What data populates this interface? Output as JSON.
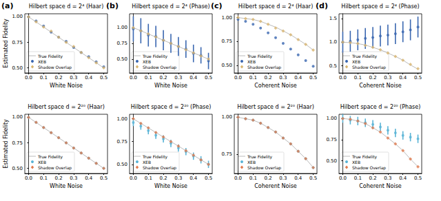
{
  "chart_data": [
    {
      "type": "scatter",
      "annotation": "(a)",
      "title": "Hilbert space d = 2⁴ (Haar)",
      "xlabel": "White Noise",
      "ylabel": "Estimated Fidelity",
      "x": [
        0,
        0.05,
        0.1,
        0.15,
        0.2,
        0.25,
        0.3,
        0.35,
        0.4,
        0.45,
        0.5
      ],
      "xlim": [
        -0.025,
        0.525
      ],
      "xticks": [
        {
          "value": 0,
          "label": "0.0"
        },
        0.1,
        0.2,
        0.3,
        0.4,
        0.5
      ],
      "ylim": [
        0.45,
        1.03
      ],
      "yticks": [
        {
          "value": 0.5,
          "label": "0.50"
        },
        0.75,
        {
          "value": 1,
          "label": "1.00"
        }
      ],
      "grid": false,
      "legend": "lower left",
      "series": [
        {
          "name": "True Fidelity",
          "type": "line",
          "line_style": "solid",
          "color": "#bbbbbb",
          "values": [
            1.0,
            0.95,
            0.9,
            0.85,
            0.8,
            0.75,
            0.7,
            0.65,
            0.6,
            0.55,
            0.5
          ]
        },
        {
          "name": "XEB",
          "type": "scatter",
          "marker": "circle",
          "color": "#3a67b0",
          "values": [
            1.0,
            0.96,
            0.91,
            0.85,
            0.8,
            0.76,
            0.7,
            0.65,
            0.61,
            0.56,
            0.51
          ]
        },
        {
          "name": "Shadow Overlap",
          "type": "scatter",
          "marker": "diamond",
          "color": "#d8b46e",
          "values": [
            1.0,
            0.95,
            0.9,
            0.86,
            0.8,
            0.75,
            0.71,
            0.65,
            0.6,
            0.55,
            0.5
          ]
        }
      ]
    },
    {
      "type": "scatter",
      "annotation": "(b)",
      "title": "Hilbert space d = 2⁴ (Phase)",
      "xlabel": "White Noise",
      "x": [
        0,
        0.05,
        0.1,
        0.15,
        0.2,
        0.25,
        0.3,
        0.35,
        0.4,
        0.45,
        0.5
      ],
      "xlim": [
        -0.025,
        0.525
      ],
      "xticks": [
        {
          "value": 0,
          "label": "0.0"
        },
        0.1,
        0.2,
        0.3,
        0.4,
        0.5
      ],
      "ylim": [
        0.28,
        1.22
      ],
      "yticks": [
        {
          "value": 0.5,
          "label": "0.50"
        },
        0.75,
        {
          "value": 1,
          "label": "1.00"
        }
      ],
      "grid": false,
      "legend": "lower left",
      "series": [
        {
          "name": "True Fidelity",
          "type": "line",
          "line_style": "solid",
          "color": "#bbbbbb",
          "values": [
            1.0,
            0.95,
            0.9,
            0.85,
            0.8,
            0.75,
            0.7,
            0.65,
            0.6,
            0.55,
            0.5
          ]
        },
        {
          "name": "XEB",
          "type": "scatter",
          "marker": "circle",
          "color": "#3a67b0",
          "values": [
            0.98,
            0.95,
            0.88,
            0.86,
            0.8,
            0.75,
            0.7,
            0.66,
            0.59,
            0.56,
            0.47
          ],
          "errors": [
            0.2,
            0.2,
            0.18,
            0.17,
            0.16,
            0.15,
            0.15,
            0.14,
            0.14,
            0.13,
            0.13
          ]
        },
        {
          "name": "Shadow Overlap",
          "type": "scatter",
          "marker": "diamond",
          "color": "#d8b46e",
          "values": [
            1.0,
            0.95,
            0.9,
            0.85,
            0.8,
            0.75,
            0.7,
            0.65,
            0.6,
            0.55,
            0.5
          ]
        }
      ]
    },
    {
      "type": "scatter",
      "annotation": "(c)",
      "title": "Hilbert space d = 2⁴ (Haar)",
      "xlabel": "Coherent Noise",
      "x": [
        0,
        0.05,
        0.1,
        0.15,
        0.2,
        0.25,
        0.3,
        0.35,
        0.4,
        0.45,
        0.5
      ],
      "xlim": [
        -0.025,
        0.525
      ],
      "xticks": [
        {
          "value": 0,
          "label": "0.0"
        },
        0.1,
        0.2,
        0.3,
        0.4,
        0.5
      ],
      "ylim": [
        0.42,
        1.04
      ],
      "yticks": [
        {
          "value": 0.5,
          "label": "0.50"
        },
        0.75,
        {
          "value": 1,
          "label": "1.00"
        }
      ],
      "grid": false,
      "legend": "lower left",
      "series": [
        {
          "name": "True Fidelity",
          "type": "line",
          "line_style": "solid",
          "color": "#bbbbbb",
          "values": [
            1.0,
            0.99,
            0.98,
            0.96,
            0.93,
            0.9,
            0.86,
            0.82,
            0.77,
            0.72,
            0.66
          ]
        },
        {
          "name": "XEB",
          "type": "scatter",
          "marker": "circle",
          "color": "#3a67b0",
          "values": [
            0.98,
            0.96,
            0.93,
            0.89,
            0.84,
            0.79,
            0.73,
            0.67,
            0.61,
            0.55,
            0.49
          ]
        },
        {
          "name": "Shadow Overlap",
          "type": "scatter",
          "marker": "diamond",
          "color": "#d8b46e",
          "values": [
            1.0,
            0.99,
            0.98,
            0.96,
            0.93,
            0.89,
            0.86,
            0.82,
            0.77,
            0.72,
            0.66
          ]
        }
      ]
    },
    {
      "type": "scatter",
      "annotation": "(d)",
      "title": "Hilbert space d = 2⁴ (Phase)",
      "xlabel": "Coherent Noise",
      "x": [
        0,
        0.05,
        0.1,
        0.15,
        0.2,
        0.25,
        0.3,
        0.35,
        0.4,
        0.45,
        0.5
      ],
      "xlim": [
        -0.025,
        0.525
      ],
      "xticks": [
        {
          "value": 0,
          "label": "0.0"
        },
        0.1,
        0.2,
        0.3,
        0.4,
        0.5
      ],
      "ylim": [
        0.35,
        1.6
      ],
      "yticks": [
        0.5,
        {
          "value": 1,
          "label": "1.0"
        },
        1.5
      ],
      "grid": false,
      "legend": "lower left",
      "series": [
        {
          "name": "True Fidelity",
          "type": "line",
          "line_style": "solid",
          "color": "#bbbbbb",
          "values": [
            1.0,
            0.99,
            0.97,
            0.94,
            0.89,
            0.84,
            0.77,
            0.7,
            0.62,
            0.52,
            0.43
          ]
        },
        {
          "name": "XEB",
          "type": "scatter",
          "marker": "circle",
          "color": "#3a67b0",
          "values": [
            1.0,
            1.02,
            1.05,
            1.08,
            1.1,
            1.13,
            1.15,
            1.18,
            1.22,
            1.26,
            1.32
          ],
          "errors": [
            0.22,
            0.22,
            0.22,
            0.22,
            0.22,
            0.22,
            0.22,
            0.22,
            0.22,
            0.22,
            0.22
          ]
        },
        {
          "name": "Shadow Overlap",
          "type": "scatter",
          "marker": "diamond",
          "color": "#d8b46e",
          "values": [
            1.0,
            0.99,
            0.97,
            0.93,
            0.89,
            0.84,
            0.77,
            0.7,
            0.62,
            0.53,
            0.44
          ]
        }
      ]
    },
    {
      "type": "scatter",
      "title": "Hilbert space d = 2²⁰ (Haar)",
      "xlabel": "White Noise",
      "ylabel": "Estimated Fidelity",
      "x": [
        0,
        0.05,
        0.1,
        0.15,
        0.2,
        0.25,
        0.3,
        0.35,
        0.4,
        0.45,
        0.5
      ],
      "xlim": [
        -0.025,
        0.525
      ],
      "xticks": [
        {
          "value": 0,
          "label": "0.0"
        },
        0.1,
        0.2,
        0.3,
        0.4,
        0.5
      ],
      "ylim": [
        0.45,
        1.03
      ],
      "yticks": [
        {
          "value": 0.5,
          "label": "0.50"
        },
        0.75,
        {
          "value": 1,
          "label": "1.00"
        }
      ],
      "grid": false,
      "legend": "lower left",
      "series": [
        {
          "name": "True Fidelity",
          "type": "line",
          "line_style": "solid",
          "color": "#bbbbbb",
          "values": [
            1.0,
            0.95,
            0.9,
            0.85,
            0.8,
            0.75,
            0.7,
            0.65,
            0.6,
            0.55,
            0.5
          ]
        },
        {
          "name": "XEB",
          "type": "scatter",
          "marker": "circle",
          "color": "#5ab4d6",
          "values": [
            1.0,
            0.95,
            0.9,
            0.85,
            0.8,
            0.75,
            0.7,
            0.65,
            0.6,
            0.55,
            0.5
          ]
        },
        {
          "name": "Shadow Overlap",
          "type": "scatter",
          "marker": "diamond",
          "color": "#e0794c",
          "values": [
            1.0,
            0.95,
            0.9,
            0.85,
            0.8,
            0.75,
            0.7,
            0.65,
            0.6,
            0.55,
            0.5
          ]
        }
      ]
    },
    {
      "type": "scatter",
      "title": "Hilbert space d = 2²⁰ (Phase)",
      "xlabel": "White Noise",
      "x": [
        0,
        0.05,
        0.1,
        0.15,
        0.2,
        0.25,
        0.3,
        0.35,
        0.4,
        0.45,
        0.5
      ],
      "xlim": [
        -0.025,
        0.525
      ],
      "xticks": [
        {
          "value": 0,
          "label": "0.0"
        },
        0.1,
        0.2,
        0.3,
        0.4,
        0.5
      ],
      "ylim": [
        0.4,
        1.05
      ],
      "yticks": [
        {
          "value": 0.5,
          "label": "0.50"
        },
        0.75,
        {
          "value": 1,
          "label": "1.00"
        }
      ],
      "grid": false,
      "legend": "lower left",
      "series": [
        {
          "name": "True Fidelity",
          "type": "line",
          "line_style": "solid",
          "color": "#bbbbbb",
          "values": [
            1.0,
            0.95,
            0.9,
            0.85,
            0.8,
            0.75,
            0.7,
            0.65,
            0.6,
            0.55,
            0.5
          ]
        },
        {
          "name": "XEB",
          "type": "scatter",
          "marker": "circle",
          "color": "#5ab4d6",
          "values": [
            0.96,
            0.92,
            0.87,
            0.82,
            0.78,
            0.73,
            0.68,
            0.64,
            0.59,
            0.55,
            0.5
          ],
          "errors": [
            0.04,
            0.04,
            0.04,
            0.04,
            0.04,
            0.04,
            0.04,
            0.04,
            0.04,
            0.04,
            0.04
          ]
        },
        {
          "name": "Shadow Overlap",
          "type": "scatter",
          "marker": "diamond",
          "color": "#e0794c",
          "values": [
            1.0,
            0.95,
            0.9,
            0.85,
            0.8,
            0.75,
            0.7,
            0.65,
            0.6,
            0.55,
            0.5
          ]
        }
      ]
    },
    {
      "type": "scatter",
      "title": "Hilbert space d = 2²⁰ (Haar)",
      "xlabel": "Coherent Noise",
      "x": [
        0,
        0.05,
        0.1,
        0.15,
        0.2,
        0.25,
        0.3,
        0.35,
        0.4,
        0.45,
        0.5
      ],
      "xlim": [
        -0.025,
        0.525
      ],
      "xticks": [
        {
          "value": 0,
          "label": "0.0"
        },
        0.1,
        0.2,
        0.3,
        0.4,
        0.5
      ],
      "ylim": [
        0.62,
        1.02
      ],
      "yticks": [
        0.75,
        {
          "value": 1,
          "label": "1.00"
        }
      ],
      "grid": false,
      "legend": "lower left",
      "series": [
        {
          "name": "True Fidelity",
          "type": "line",
          "line_style": "solid",
          "color": "#bbbbbb",
          "values": [
            1.0,
            0.99,
            0.98,
            0.96,
            0.93,
            0.9,
            0.86,
            0.82,
            0.77,
            0.72,
            0.66
          ]
        },
        {
          "name": "XEB",
          "type": "scatter",
          "marker": "circle",
          "color": "#5ab4d6",
          "values": [
            1.0,
            0.99,
            0.98,
            0.96,
            0.93,
            0.9,
            0.86,
            0.82,
            0.77,
            0.72,
            0.66
          ]
        },
        {
          "name": "Shadow Overlap",
          "type": "scatter",
          "marker": "diamond",
          "color": "#e0794c",
          "values": [
            1.0,
            0.99,
            0.98,
            0.96,
            0.93,
            0.9,
            0.86,
            0.82,
            0.77,
            0.72,
            0.66
          ]
        }
      ]
    },
    {
      "type": "scatter",
      "title": "Hilbert space d = 2²⁰ (Phase)",
      "xlabel": "Coherent Noise",
      "x": [
        0,
        0.05,
        0.1,
        0.15,
        0.2,
        0.25,
        0.3,
        0.35,
        0.4,
        0.45,
        0.5
      ],
      "xlim": [
        -0.025,
        0.525
      ],
      "xticks": [
        {
          "value": 0,
          "label": "0.0"
        },
        0.1,
        0.2,
        0.3,
        0.4,
        0.5
      ],
      "ylim": [
        0.35,
        1.05
      ],
      "yticks": [
        {
          "value": 0.5,
          "label": "0.50"
        },
        0.75,
        {
          "value": 1,
          "label": "1.00"
        }
      ],
      "grid": false,
      "legend": "lower left",
      "series": [
        {
          "name": "True Fidelity",
          "type": "line",
          "line_style": "solid",
          "color": "#bbbbbb",
          "values": [
            1.0,
            0.99,
            0.97,
            0.94,
            0.89,
            0.84,
            0.77,
            0.7,
            0.62,
            0.52,
            0.43
          ]
        },
        {
          "name": "XEB",
          "type": "scatter",
          "marker": "circle",
          "color": "#5ab4d6",
          "values": [
            1.0,
            0.98,
            0.97,
            0.95,
            0.93,
            0.9,
            0.86,
            0.83,
            0.8,
            0.78,
            0.76
          ],
          "errors": [
            0.05,
            0.05,
            0.05,
            0.05,
            0.05,
            0.05,
            0.05,
            0.05,
            0.05,
            0.05,
            0.05
          ]
        },
        {
          "name": "Shadow Overlap",
          "type": "scatter",
          "marker": "diamond",
          "color": "#e0794c",
          "values": [
            1.0,
            0.99,
            0.97,
            0.94,
            0.89,
            0.84,
            0.77,
            0.7,
            0.62,
            0.52,
            0.43
          ]
        }
      ]
    }
  ]
}
